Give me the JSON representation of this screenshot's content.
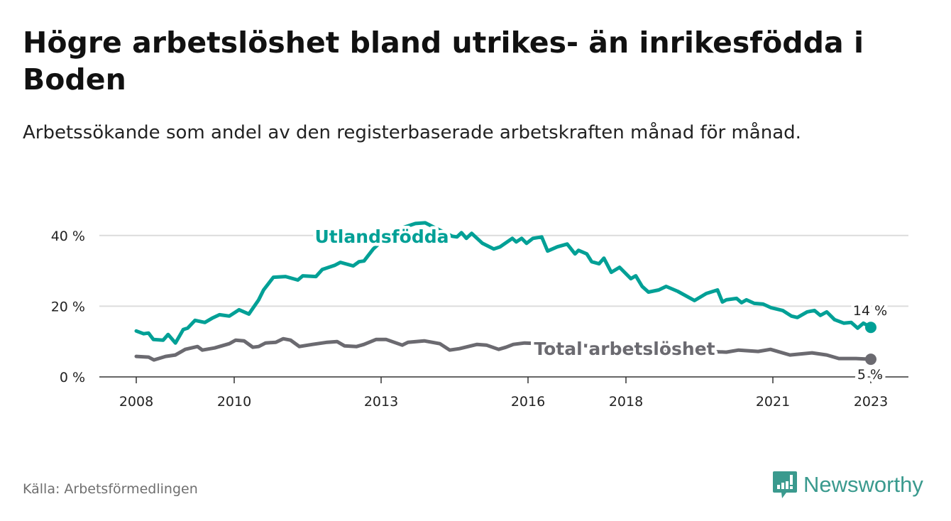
{
  "header": {
    "title": "Högre arbetslöshet bland utrikes- än inrikesfödda i Boden",
    "subtitle": "Arbetssökande som andel av den registerbaserade arbetskraften månad för månad."
  },
  "footer": {
    "source": "Källa: Arbetsförmedlingen",
    "brand": "Newsworthy"
  },
  "colors": {
    "teal": "#00a096",
    "gray": "#6b6a70",
    "grid": "#dcdcdc",
    "brand": "#3a9a8e"
  },
  "chart_data": {
    "type": "line",
    "title": "Högre arbetslöshet bland utrikes- än inrikesfödda i Boden",
    "xlabel": "",
    "ylabel": "",
    "xlim": [
      2008,
      2023
    ],
    "ylim": [
      0,
      44
    ],
    "grid": true,
    "x_ticks": [
      {
        "value": 2008,
        "label": "2008"
      },
      {
        "value": 2010,
        "label": "2010"
      },
      {
        "value": 2013,
        "label": "2013"
      },
      {
        "value": 2016,
        "label": "2016"
      },
      {
        "value": 2018,
        "label": "2018"
      },
      {
        "value": 2021,
        "label": "2021"
      },
      {
        "value": 2023,
        "label": "2023"
      }
    ],
    "y_ticks": [
      {
        "value": 0,
        "label": "0 %"
      },
      {
        "value": 20,
        "label": "20 %"
      },
      {
        "value": 40,
        "label": "40 %"
      }
    ],
    "series": [
      {
        "name": "Utlandsfödda",
        "color": "#00a096",
        "end_label": "14 %",
        "points": [
          [
            2008.0,
            13
          ],
          [
            2008.15,
            12.2
          ],
          [
            2008.25,
            12.4
          ],
          [
            2008.35,
            10.6
          ],
          [
            2008.55,
            10.4
          ],
          [
            2008.65,
            12
          ],
          [
            2008.8,
            9.6
          ],
          [
            2008.96,
            13.4
          ],
          [
            2009.05,
            13.8
          ],
          [
            2009.2,
            16
          ],
          [
            2009.4,
            15.4
          ],
          [
            2009.55,
            16.6
          ],
          [
            2009.7,
            17.6
          ],
          [
            2009.9,
            17.2
          ],
          [
            2010.1,
            19
          ],
          [
            2010.3,
            17.8
          ],
          [
            2010.5,
            21.8
          ],
          [
            2010.6,
            24.6
          ],
          [
            2010.8,
            28.2
          ],
          [
            2011.05,
            28.4
          ],
          [
            2011.3,
            27.4
          ],
          [
            2011.4,
            28.6
          ],
          [
            2011.67,
            28.4
          ],
          [
            2011.8,
            30.4
          ],
          [
            2012.06,
            31.6
          ],
          [
            2012.17,
            32.4
          ],
          [
            2012.43,
            31.4
          ],
          [
            2012.55,
            32.6
          ],
          [
            2012.65,
            32.8
          ],
          [
            2012.84,
            36.2
          ],
          [
            2013.1,
            39.5
          ],
          [
            2013.4,
            42
          ],
          [
            2013.7,
            43.4
          ],
          [
            2013.9,
            43.6
          ],
          [
            2014.2,
            41.5
          ],
          [
            2014.45,
            39.8
          ],
          [
            2014.55,
            39.6
          ],
          [
            2014.64,
            40.8
          ],
          [
            2014.74,
            39.2
          ],
          [
            2014.85,
            40.6
          ],
          [
            2015.07,
            37.8
          ],
          [
            2015.3,
            36.2
          ],
          [
            2015.43,
            36.8
          ],
          [
            2015.68,
            39.2
          ],
          [
            2015.76,
            38.2
          ],
          [
            2015.87,
            39.2
          ],
          [
            2015.97,
            37.8
          ],
          [
            2016.1,
            39.2
          ],
          [
            2016.28,
            39.6
          ],
          [
            2016.4,
            35.6
          ],
          [
            2016.6,
            36.8
          ],
          [
            2016.8,
            37.6
          ],
          [
            2016.96,
            34.8
          ],
          [
            2017.03,
            35.8
          ],
          [
            2017.2,
            34.8
          ],
          [
            2017.3,
            32.6
          ],
          [
            2017.45,
            32
          ],
          [
            2017.55,
            33.6
          ],
          [
            2017.7,
            29.6
          ],
          [
            2017.87,
            31
          ],
          [
            2018.1,
            27.8
          ],
          [
            2018.2,
            28.6
          ],
          [
            2018.33,
            25.6
          ],
          [
            2018.46,
            24
          ],
          [
            2018.67,
            24.6
          ],
          [
            2018.82,
            25.6
          ],
          [
            2019.06,
            24.2
          ],
          [
            2019.4,
            21.6
          ],
          [
            2019.64,
            23.6
          ],
          [
            2019.87,
            24.6
          ],
          [
            2019.97,
            21.2
          ],
          [
            2020.05,
            21.8
          ],
          [
            2020.26,
            22.2
          ],
          [
            2020.36,
            21
          ],
          [
            2020.46,
            21.8
          ],
          [
            2020.62,
            20.8
          ],
          [
            2020.8,
            20.6
          ],
          [
            2020.96,
            19.6
          ],
          [
            2021.2,
            18.8
          ],
          [
            2021.38,
            17.2
          ],
          [
            2021.5,
            16.8
          ],
          [
            2021.7,
            18.4
          ],
          [
            2021.85,
            18.8
          ],
          [
            2021.97,
            17.4
          ],
          [
            2022.1,
            18.4
          ],
          [
            2022.26,
            16.2
          ],
          [
            2022.45,
            15.2
          ],
          [
            2022.6,
            15.4
          ],
          [
            2022.73,
            13.8
          ],
          [
            2022.85,
            15.2
          ],
          [
            2023.0,
            14
          ]
        ]
      },
      {
        "name": "Total arbetslöshet",
        "color": "#6b6a70",
        "end_label": "5 %",
        "points": [
          [
            2008.0,
            5.8
          ],
          [
            2008.25,
            5.6
          ],
          [
            2008.36,
            4.8
          ],
          [
            2008.6,
            5.8
          ],
          [
            2008.8,
            6.2
          ],
          [
            2009.0,
            7.8
          ],
          [
            2009.25,
            8.6
          ],
          [
            2009.35,
            7.6
          ],
          [
            2009.6,
            8.2
          ],
          [
            2009.9,
            9.4
          ],
          [
            2010.03,
            10.4
          ],
          [
            2010.2,
            10.2
          ],
          [
            2010.38,
            8.4
          ],
          [
            2010.5,
            8.6
          ],
          [
            2010.64,
            9.6
          ],
          [
            2010.85,
            9.8
          ],
          [
            2011.0,
            10.8
          ],
          [
            2011.15,
            10.4
          ],
          [
            2011.33,
            8.6
          ],
          [
            2011.6,
            9.2
          ],
          [
            2011.9,
            9.8
          ],
          [
            2012.1,
            10
          ],
          [
            2012.25,
            8.8
          ],
          [
            2012.5,
            8.6
          ],
          [
            2012.65,
            9.2
          ],
          [
            2012.9,
            10.6
          ],
          [
            2013.1,
            10.6
          ],
          [
            2013.43,
            9
          ],
          [
            2013.55,
            9.8
          ],
          [
            2013.88,
            10.2
          ],
          [
            2014.2,
            9.4
          ],
          [
            2014.4,
            7.6
          ],
          [
            2014.6,
            8
          ],
          [
            2014.96,
            9.2
          ],
          [
            2015.15,
            9
          ],
          [
            2015.4,
            7.8
          ],
          [
            2015.55,
            8.4
          ],
          [
            2015.7,
            9.2
          ],
          [
            2015.93,
            9.6
          ],
          [
            2016.3,
            9.4
          ],
          [
            2016.8,
            9
          ],
          [
            2017.3,
            8.8
          ],
          [
            2017.8,
            8.6
          ],
          [
            2018.3,
            8
          ],
          [
            2018.8,
            7.8
          ],
          [
            2019.3,
            7.4
          ],
          [
            2019.7,
            7.2
          ],
          [
            2020.05,
            7
          ],
          [
            2020.3,
            7.6
          ],
          [
            2020.7,
            7.2
          ],
          [
            2020.95,
            7.8
          ],
          [
            2021.35,
            6.2
          ],
          [
            2021.8,
            6.8
          ],
          [
            2022.1,
            6.2
          ],
          [
            2022.35,
            5.2
          ],
          [
            2022.7,
            5.2
          ],
          [
            2023.0,
            5
          ]
        ]
      }
    ]
  }
}
